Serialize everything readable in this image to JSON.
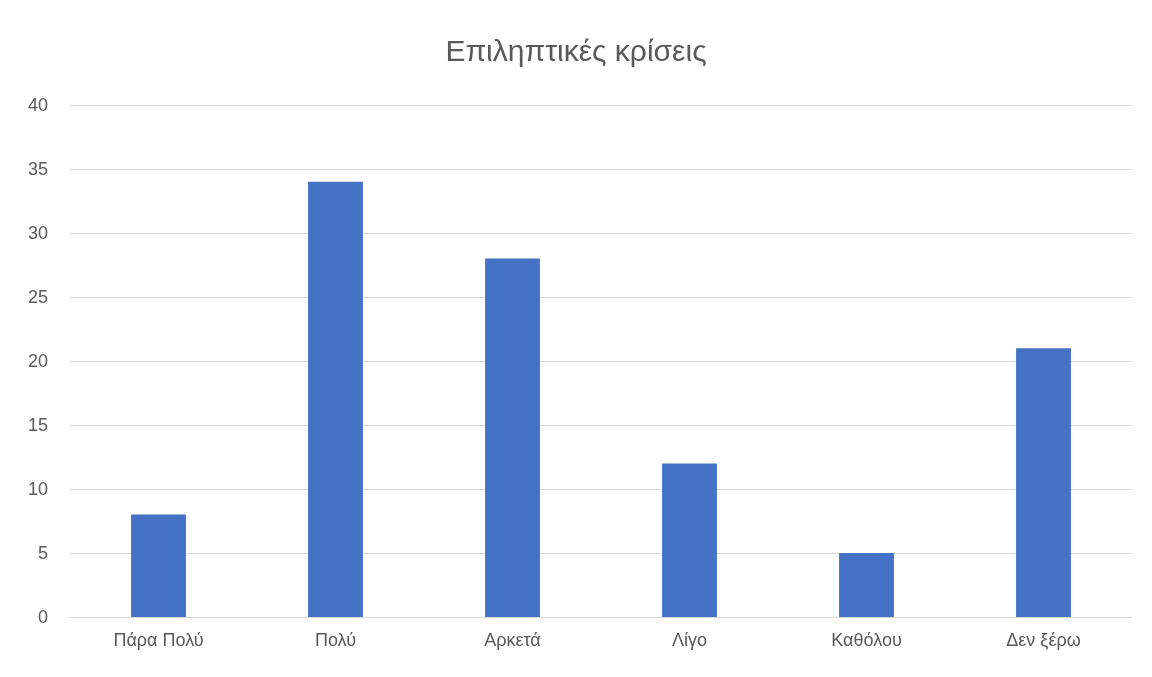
{
  "chart_data": {
    "type": "bar",
    "title": "Επιληπτικές κρίσεις",
    "categories": [
      "Πάρα Πολύ",
      "Πολύ",
      "Αρκετά",
      "Λίγο",
      "Καθόλου",
      "Δεν ξέρω"
    ],
    "values": [
      8,
      34,
      28,
      12,
      5,
      21
    ],
    "color": "#4472c4",
    "ylim": [
      0,
      40
    ],
    "yticks": [
      0,
      5,
      10,
      15,
      20,
      25,
      30,
      35,
      40
    ],
    "grid": "y"
  }
}
